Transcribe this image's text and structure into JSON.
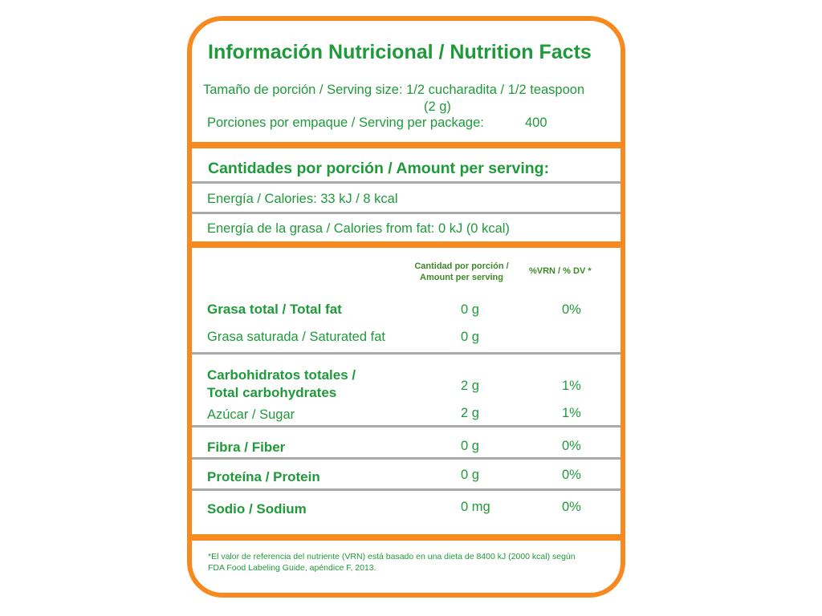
{
  "title": "Información Nutricional / Nutrition Facts",
  "serving_size_line1": "Tamaño de porción / Serving size: 1/2 cucharadita / 1/2 teaspoon",
  "serving_size_line2": "(2 g)",
  "servings_label": "Porciones por empaque / Serving per package:",
  "servings_value": "400",
  "amount_heading": "Cantidades por porción / Amount per serving:",
  "energy": "Energía / Calories:  33 kJ / 8 kcal",
  "energy_fat": "Energía de la grasa / Calories from fat: 0 kJ (0 kcal)",
  "col_amount_1": "Cantidad por porción /",
  "col_amount_2": "Amount per serving",
  "col_dv": "%VRN / % DV *",
  "rows": {
    "total_fat": {
      "label": "Grasa total / Total fat",
      "amount": "0 g",
      "dv": "0%"
    },
    "sat_fat": {
      "label": "Grasa saturada / Saturated fat",
      "amount": "0 g"
    },
    "carbs": {
      "label_1": "Carbohidratos totales /",
      "label_2": "Total carbohydrates",
      "amount": "2 g",
      "dv": "1%"
    },
    "sugar": {
      "label": "Azúcar / Sugar",
      "amount": "2 g",
      "dv": "1%"
    },
    "fiber": {
      "label": "Fibra / Fiber",
      "amount": "0 g",
      "dv": "0%"
    },
    "protein": {
      "label": "Proteína / Protein",
      "amount": "0 g",
      "dv": "0%"
    },
    "sodium": {
      "label": "Sodio / Sodium",
      "amount": "0 mg",
      "dv": "0%"
    }
  },
  "footnote_1": "*El valor de referencia del nutriente (VRN) está basado en una dieta de 8400 kJ (2000 kcal) según",
  "footnote_2": "FDA Food Labeling Guide, apéndice F, 2013.",
  "colors": {
    "border": "#f7891f",
    "text": "#1f9a3a",
    "divider": "#a9a9a9"
  }
}
